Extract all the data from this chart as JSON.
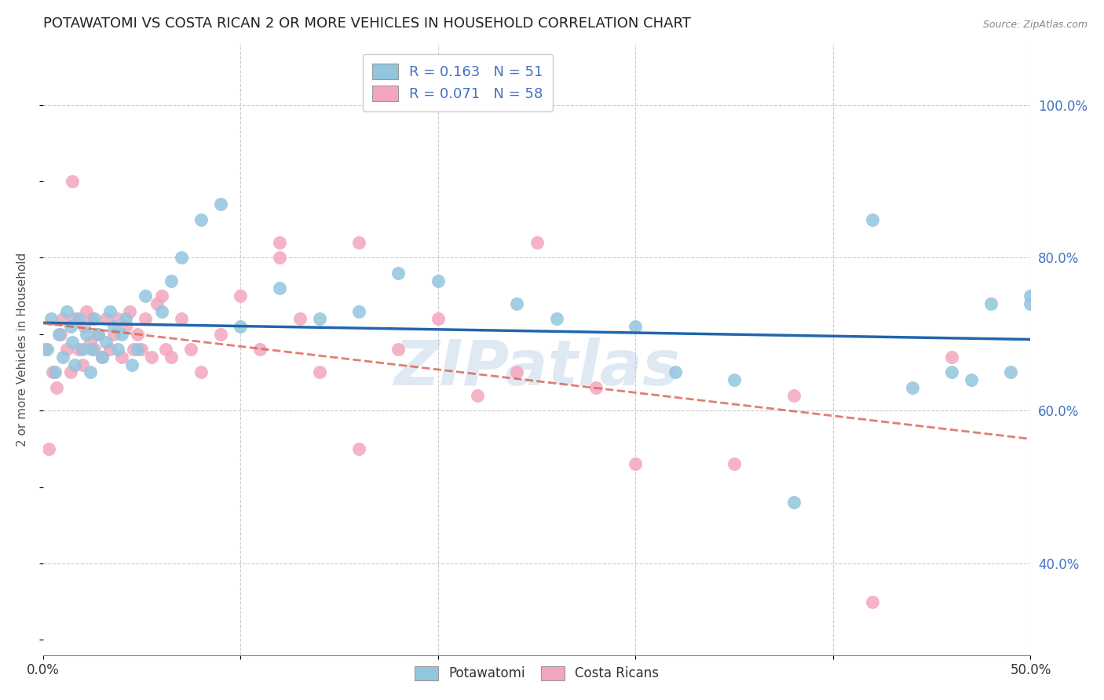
{
  "title": "POTAWATOMI VS COSTA RICAN 2 OR MORE VEHICLES IN HOUSEHOLD CORRELATION CHART",
  "source": "Source: ZipAtlas.com",
  "ylabel": "2 or more Vehicles in Household",
  "x_min": 0.0,
  "x_max": 0.5,
  "y_min": 0.28,
  "y_max": 1.08,
  "y_ticks_right": [
    0.4,
    0.6,
    0.8,
    1.0
  ],
  "y_tick_labels_right": [
    "40.0%",
    "60.0%",
    "80.0%",
    "100.0%"
  ],
  "legend_blue_label": "R = 0.163   N = 51",
  "legend_pink_label": "R = 0.071   N = 58",
  "blue_color": "#92c5de",
  "pink_color": "#f4a6be",
  "blue_line_color": "#2166ac",
  "pink_line_color": "#d6604d",
  "watermark": "ZIPatlas",
  "legend_label_1": "Potawatomi",
  "legend_label_2": "Costa Ricans",
  "potawatomi_x": [
    0.002,
    0.004,
    0.006,
    0.008,
    0.01,
    0.012,
    0.014,
    0.015,
    0.016,
    0.018,
    0.02,
    0.022,
    0.024,
    0.025,
    0.026,
    0.028,
    0.03,
    0.032,
    0.034,
    0.036,
    0.038,
    0.04,
    0.042,
    0.045,
    0.048,
    0.052,
    0.06,
    0.065,
    0.07,
    0.08,
    0.09,
    0.1,
    0.12,
    0.14,
    0.16,
    0.18,
    0.2,
    0.24,
    0.26,
    0.3,
    0.32,
    0.35,
    0.38,
    0.42,
    0.44,
    0.46,
    0.47,
    0.48,
    0.49,
    0.5,
    0.5
  ],
  "potawatomi_y": [
    0.68,
    0.72,
    0.65,
    0.7,
    0.67,
    0.73,
    0.71,
    0.69,
    0.66,
    0.72,
    0.68,
    0.7,
    0.65,
    0.68,
    0.72,
    0.7,
    0.67,
    0.69,
    0.73,
    0.71,
    0.68,
    0.7,
    0.72,
    0.66,
    0.68,
    0.75,
    0.73,
    0.77,
    0.8,
    0.85,
    0.87,
    0.71,
    0.76,
    0.72,
    0.73,
    0.78,
    0.77,
    0.74,
    0.72,
    0.71,
    0.65,
    0.64,
    0.48,
    0.85,
    0.63,
    0.65,
    0.64,
    0.74,
    0.65,
    0.74,
    0.75
  ],
  "costaricans_x": [
    0.001,
    0.003,
    0.005,
    0.007,
    0.009,
    0.01,
    0.012,
    0.014,
    0.015,
    0.016,
    0.018,
    0.02,
    0.021,
    0.022,
    0.024,
    0.025,
    0.026,
    0.028,
    0.03,
    0.032,
    0.034,
    0.036,
    0.038,
    0.04,
    0.042,
    0.044,
    0.046,
    0.048,
    0.05,
    0.052,
    0.055,
    0.058,
    0.06,
    0.062,
    0.065,
    0.07,
    0.075,
    0.08,
    0.09,
    0.1,
    0.11,
    0.12,
    0.13,
    0.14,
    0.16,
    0.18,
    0.2,
    0.22,
    0.25,
    0.28,
    0.12,
    0.16,
    0.24,
    0.3,
    0.35,
    0.38,
    0.42,
    0.46
  ],
  "costaricans_y": [
    0.68,
    0.55,
    0.65,
    0.63,
    0.7,
    0.72,
    0.68,
    0.65,
    0.9,
    0.72,
    0.68,
    0.66,
    0.71,
    0.73,
    0.69,
    0.72,
    0.68,
    0.7,
    0.67,
    0.72,
    0.68,
    0.7,
    0.72,
    0.67,
    0.71,
    0.73,
    0.68,
    0.7,
    0.68,
    0.72,
    0.67,
    0.74,
    0.75,
    0.68,
    0.67,
    0.72,
    0.68,
    0.65,
    0.7,
    0.75,
    0.68,
    0.8,
    0.72,
    0.65,
    0.55,
    0.68,
    0.72,
    0.62,
    0.82,
    0.63,
    0.82,
    0.82,
    0.65,
    0.53,
    0.53,
    0.62,
    0.35,
    0.67
  ]
}
